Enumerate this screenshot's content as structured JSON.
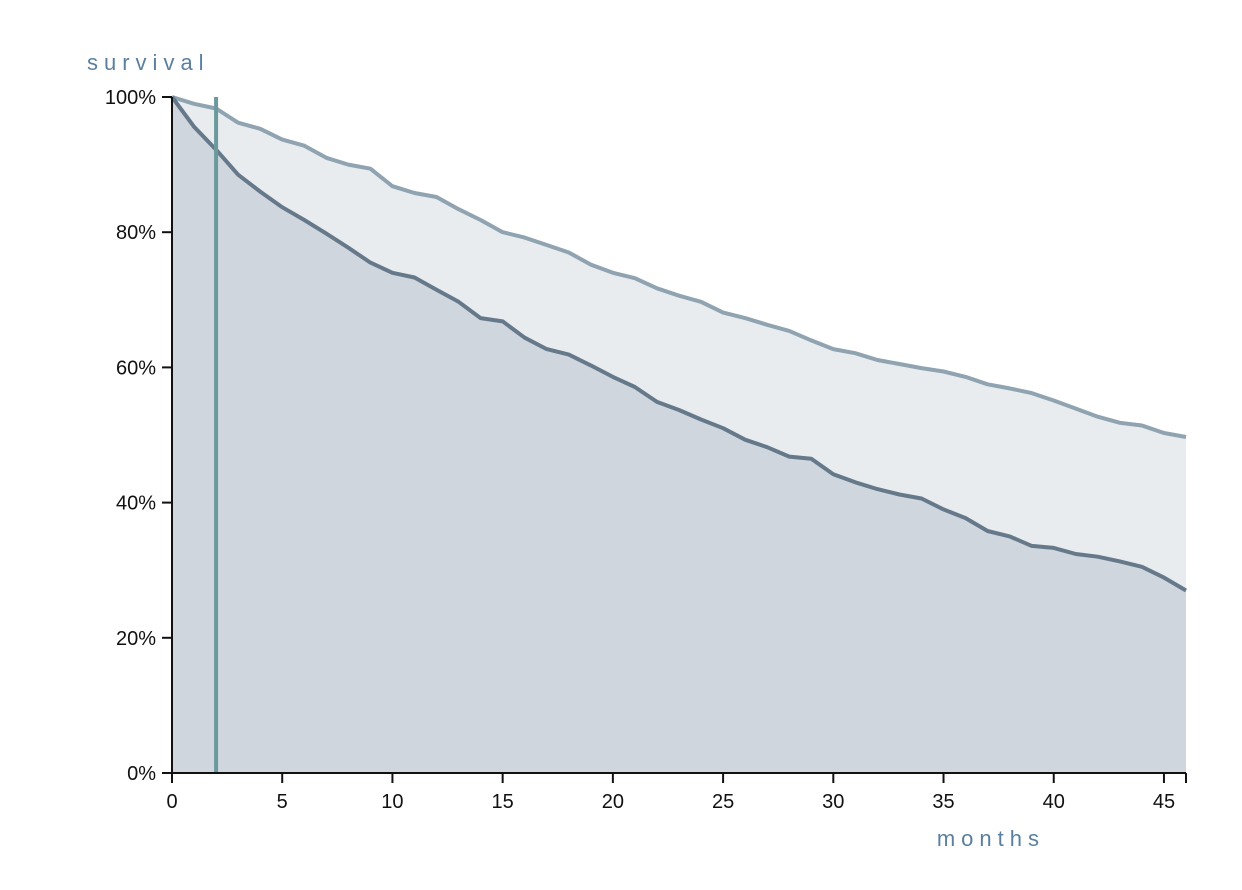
{
  "chart_data": {
    "type": "area",
    "ylabel": "survival",
    "xlabel": "months",
    "xlim": [
      0,
      46
    ],
    "ylim": [
      0,
      1
    ],
    "x_ticks": [
      0,
      5,
      10,
      15,
      20,
      25,
      30,
      35,
      40,
      45
    ],
    "x_tick_labels": [
      "0",
      "5",
      "10",
      "15",
      "20",
      "25",
      "30",
      "35",
      "40",
      "45"
    ],
    "y_ticks": [
      0,
      0.2,
      0.4,
      0.6,
      0.8,
      1.0
    ],
    "y_tick_labels": [
      "0%",
      "20%",
      "40%",
      "60%",
      "80%",
      "100%"
    ],
    "marker_x": 2,
    "series": [
      {
        "x": [
          0,
          1,
          2,
          3,
          4,
          5,
          6,
          7,
          8,
          9,
          10,
          11,
          12,
          13,
          14,
          15,
          16,
          17,
          18,
          19,
          20,
          21,
          22,
          23,
          24,
          25,
          26,
          27,
          28,
          29,
          30,
          31,
          32,
          33,
          34,
          35,
          36,
          37,
          38,
          39,
          40,
          41,
          42,
          43,
          44,
          45,
          46
        ],
        "values": [
          1.0,
          0.99,
          0.983,
          0.962,
          0.953,
          0.937,
          0.928,
          0.91,
          0.9,
          0.894,
          0.868,
          0.858,
          0.852,
          0.834,
          0.818,
          0.8,
          0.792,
          0.781,
          0.77,
          0.752,
          0.74,
          0.732,
          0.717,
          0.706,
          0.697,
          0.681,
          0.673,
          0.663,
          0.654,
          0.64,
          0.627,
          0.621,
          0.611,
          0.605,
          0.599,
          0.594,
          0.586,
          0.575,
          0.569,
          0.562,
          0.551,
          0.539,
          0.527,
          0.518,
          0.514,
          0.503,
          0.497
        ],
        "color": "#8fa3b1",
        "fill": "#e8ecef"
      },
      {
        "x": [
          0,
          1,
          2,
          3,
          4,
          5,
          6,
          7,
          8,
          9,
          10,
          11,
          12,
          13,
          14,
          15,
          16,
          17,
          18,
          19,
          20,
          21,
          22,
          23,
          24,
          25,
          26,
          27,
          28,
          29,
          30,
          31,
          32,
          33,
          34,
          35,
          36,
          37,
          38,
          39,
          40,
          41,
          42,
          43,
          44,
          45,
          46
        ],
        "values": [
          1.0,
          0.956,
          0.922,
          0.885,
          0.86,
          0.837,
          0.818,
          0.798,
          0.777,
          0.755,
          0.74,
          0.733,
          0.715,
          0.697,
          0.673,
          0.668,
          0.644,
          0.627,
          0.619,
          0.603,
          0.586,
          0.571,
          0.549,
          0.537,
          0.523,
          0.51,
          0.493,
          0.482,
          0.468,
          0.465,
          0.442,
          0.43,
          0.42,
          0.412,
          0.406,
          0.39,
          0.377,
          0.358,
          0.35,
          0.336,
          0.333,
          0.324,
          0.32,
          0.313,
          0.305,
          0.289,
          0.27
        ],
        "color": "#66798a",
        "fill": "#cfd6de"
      }
    ]
  }
}
